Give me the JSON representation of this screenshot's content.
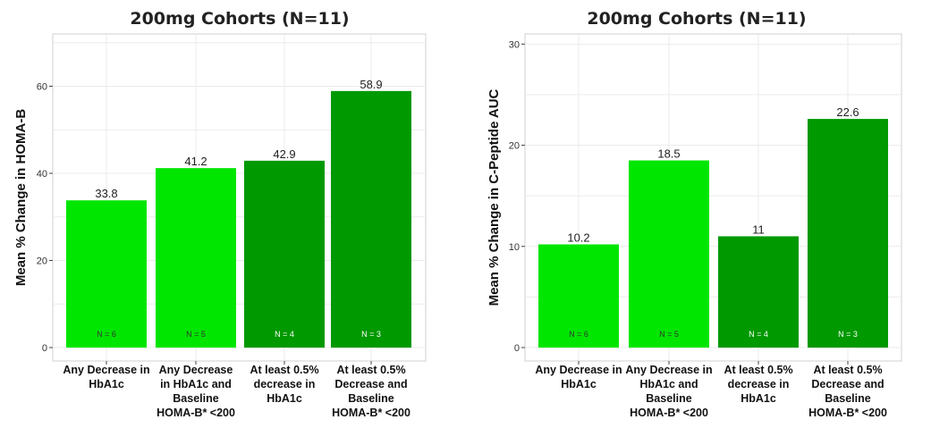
{
  "chart_data": [
    {
      "type": "bar",
      "title": "200mg Cohorts (N=11)",
      "ylabel": "Mean % Change in HOMA-B",
      "xlabel": "",
      "ylim": [
        0,
        72
      ],
      "yticks": [
        0,
        20,
        40,
        60
      ],
      "grid": true,
      "categories": [
        [
          "Any Decrease in",
          "HbA1c"
        ],
        [
          "Any Decrease",
          "in HbA1c  and",
          "Baseline",
          "HOMA-B* <200"
        ],
        [
          "At least 0.5%",
          "decrease in",
          "HbA1c"
        ],
        [
          "At least 0.5%",
          "Decrease and",
          "Baseline",
          "HOMA-B* <200"
        ]
      ],
      "values": [
        33.8,
        41.2,
        42.9,
        58.9
      ],
      "value_labels": [
        "33.8",
        "41.2",
        "42.9",
        "58.9"
      ],
      "n_labels": [
        "N = 6",
        "N = 5",
        "N = 4",
        "N = 3"
      ],
      "colors": [
        "#00e600",
        "#00e600",
        "#009900",
        "#009900"
      ],
      "n_colors": [
        "#333333",
        "#333333",
        "#ffffff",
        "#ffffff"
      ]
    },
    {
      "type": "bar",
      "title": "200mg Cohorts (N=11)",
      "ylabel": "Mean % Change in C-Peptide AUC",
      "xlabel": "",
      "ylim": [
        0,
        31
      ],
      "yticks": [
        0,
        10,
        20,
        30
      ],
      "grid": true,
      "categories": [
        [
          "Any Decrease in",
          "HbA1c"
        ],
        [
          "Any Decrease in",
          "HbA1c  and",
          "Baseline",
          "HOMA-B* <200"
        ],
        [
          "At least 0.5%",
          "decrease in",
          "HbA1c"
        ],
        [
          "At least 0.5%",
          "Decrease and",
          "Baseline",
          "HOMA-B* <200"
        ]
      ],
      "values": [
        10.2,
        18.5,
        11,
        22.6
      ],
      "value_labels": [
        "10.2",
        "18.5",
        "11",
        "22.6"
      ],
      "n_labels": [
        "N = 6",
        "N = 5",
        "N = 4",
        "N = 3"
      ],
      "colors": [
        "#00e600",
        "#00e600",
        "#009900",
        "#009900"
      ],
      "n_colors": [
        "#333333",
        "#333333",
        "#ffffff",
        "#ffffff"
      ]
    }
  ]
}
